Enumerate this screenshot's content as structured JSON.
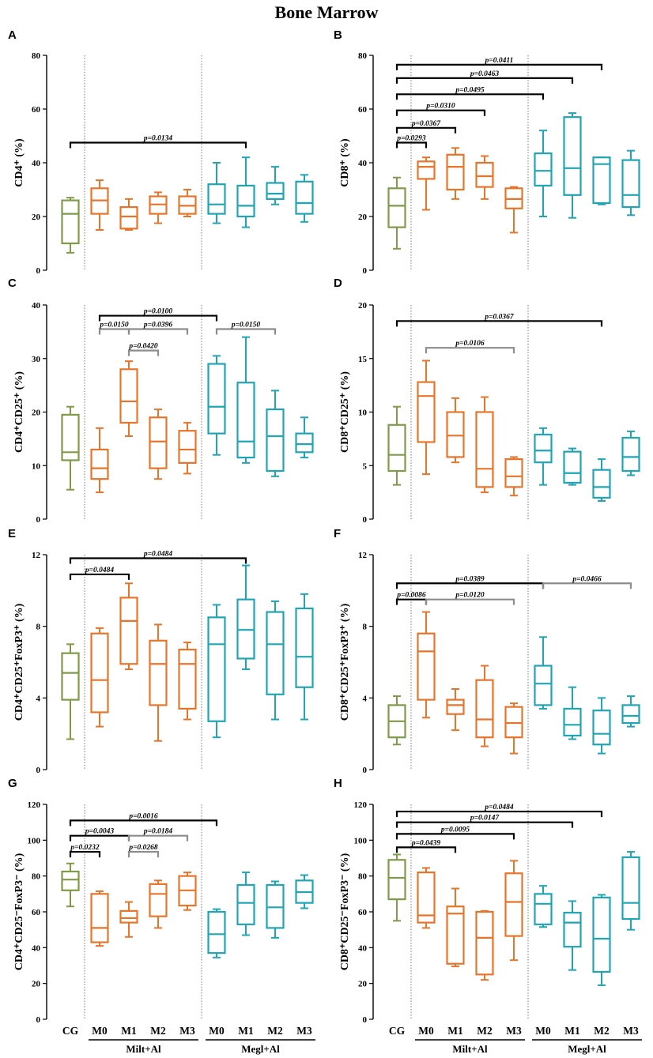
{
  "figure_title": "Bone Marrow",
  "categories": [
    "CG",
    "M0",
    "M1",
    "M2",
    "M3",
    "M0",
    "M1",
    "M2",
    "M3"
  ],
  "groups": [
    "Milt+Al",
    "Megl+Al"
  ],
  "colors": {
    "CG": "#7f9a48",
    "Milt+Al": "#e8742a",
    "Megl+Al": "#1fa5b4",
    "black": "#000000",
    "gray": "#8c8c8c"
  },
  "chart_data": [
    {
      "panel": "A",
      "type": "box",
      "ylabel": "CD4⁺ (%)",
      "ylim": [
        0,
        80
      ],
      "yticks": [
        0,
        20,
        40,
        60,
        80
      ],
      "series": [
        {
          "name": "CG",
          "values": [
            6.5,
            10,
            21,
            26,
            27
          ]
        },
        {
          "name": "M0",
          "values": [
            15,
            21,
            26,
            30.5,
            33.5
          ]
        },
        {
          "name": "M1",
          "values": [
            15,
            15.5,
            20,
            23.5,
            26.5
          ]
        },
        {
          "name": "M2",
          "values": [
            17.5,
            21,
            24.5,
            27.5,
            29
          ]
        },
        {
          "name": "M3",
          "values": [
            20,
            21,
            24,
            27.5,
            30
          ]
        },
        {
          "name": "M0",
          "values": [
            17.5,
            21,
            24.5,
            32,
            40
          ]
        },
        {
          "name": "M1",
          "values": [
            16,
            20,
            24,
            31.5,
            42
          ]
        },
        {
          "name": "M2",
          "values": [
            24.5,
            26.5,
            28.5,
            32.5,
            38.5
          ]
        },
        {
          "name": "M3",
          "values": [
            18,
            21,
            25,
            33,
            35.5
          ]
        }
      ],
      "annotations": [
        {
          "from": 0,
          "to": 6,
          "level": 47.5,
          "text": "p=0.0134",
          "color": "black"
        }
      ]
    },
    {
      "panel": "B",
      "type": "box",
      "ylabel": "CD8⁺ (%)",
      "ylim": [
        0,
        80
      ],
      "yticks": [
        0,
        20,
        40,
        60,
        80
      ],
      "series": [
        {
          "name": "CG",
          "values": [
            8,
            16,
            24,
            30.5,
            34.5
          ]
        },
        {
          "name": "M0",
          "values": [
            22.5,
            34,
            38.5,
            40.5,
            42
          ]
        },
        {
          "name": "M1",
          "values": [
            26.5,
            30,
            38.5,
            43,
            45.5
          ]
        },
        {
          "name": "M2",
          "values": [
            26.5,
            31,
            35,
            40,
            42.5
          ]
        },
        {
          "name": "M3",
          "values": [
            14,
            23,
            26.5,
            30.5,
            31
          ]
        },
        {
          "name": "M0",
          "values": [
            20,
            31.5,
            37,
            43.5,
            52
          ]
        },
        {
          "name": "M1",
          "values": [
            19.5,
            28,
            38,
            57,
            58.5
          ]
        },
        {
          "name": "M2",
          "values": [
            24.5,
            25,
            39.5,
            42,
            42
          ]
        },
        {
          "name": "M3",
          "values": [
            20.5,
            23.5,
            28,
            41,
            44.5
          ]
        }
      ],
      "annotations": [
        {
          "from": 0,
          "to": 7,
          "level": 76.5,
          "text": "p=0.0411",
          "color": "black"
        },
        {
          "from": 0,
          "to": 6,
          "level": 71.5,
          "text": "p=0.0463",
          "color": "black"
        },
        {
          "from": 0,
          "to": 5,
          "level": 65.5,
          "text": "p=0.0495",
          "color": "black"
        },
        {
          "from": 0,
          "to": 3,
          "level": 59.5,
          "text": "p=0.0310",
          "color": "black"
        },
        {
          "from": 0,
          "to": 2,
          "level": 53,
          "text": "p=0.0367",
          "color": "black"
        },
        {
          "from": 0,
          "to": 1,
          "level": 47.5,
          "text": "p=0.0293",
          "color": "black"
        }
      ]
    },
    {
      "panel": "C",
      "type": "box",
      "ylabel": "CD4⁺CD25⁺ (%)",
      "ylim": [
        0,
        40
      ],
      "yticks": [
        0,
        10,
        20,
        30,
        40
      ],
      "series": [
        {
          "name": "CG",
          "values": [
            5.5,
            11,
            12.5,
            19.5,
            21
          ]
        },
        {
          "name": "M0",
          "values": [
            5,
            7.5,
            9.5,
            13,
            17
          ]
        },
        {
          "name": "M1",
          "values": [
            15.5,
            18,
            22,
            28,
            29.5
          ]
        },
        {
          "name": "M2",
          "values": [
            7.5,
            9.5,
            14.5,
            19,
            20.5
          ]
        },
        {
          "name": "M3",
          "values": [
            8.5,
            10.5,
            13,
            16.5,
            18
          ]
        },
        {
          "name": "M0",
          "values": [
            12,
            16,
            21,
            29,
            30.5
          ]
        },
        {
          "name": "M1",
          "values": [
            10.5,
            11.5,
            14.5,
            25.5,
            34
          ]
        },
        {
          "name": "M2",
          "values": [
            8,
            9,
            15.5,
            20.5,
            24
          ]
        },
        {
          "name": "M3",
          "values": [
            11.5,
            12.5,
            14,
            16,
            19
          ]
        }
      ],
      "annotations": [
        {
          "from": 1,
          "to": 5,
          "level": 38,
          "text": "p=0.0100",
          "color": "black"
        },
        {
          "from": 5,
          "to": 7,
          "level": 35.5,
          "text": "p=0.0150",
          "color": "gray"
        },
        {
          "from": 1,
          "to": 2,
          "level": 35.5,
          "text": "p=0.0150",
          "color": "gray"
        },
        {
          "from": 2,
          "to": 4,
          "level": 35.5,
          "text": "p=0.0396",
          "color": "gray"
        },
        {
          "from": 2,
          "to": 3,
          "level": 31.5,
          "text": "p=0.0420",
          "color": "gray"
        }
      ]
    },
    {
      "panel": "D",
      "type": "box",
      "ylabel": "CD8⁺CD25⁺ (%)",
      "ylim": [
        0,
        20
      ],
      "yticks": [
        0,
        5,
        10,
        15,
        20
      ],
      "series": [
        {
          "name": "CG",
          "values": [
            3.2,
            4.5,
            6,
            8.8,
            10.5
          ]
        },
        {
          "name": "M0",
          "values": [
            4.2,
            7.2,
            11.5,
            12.8,
            14.8
          ]
        },
        {
          "name": "M1",
          "values": [
            5.3,
            5.8,
            7.8,
            10,
            11.3
          ]
        },
        {
          "name": "M2",
          "values": [
            2.5,
            3,
            4.7,
            10,
            11.4
          ]
        },
        {
          "name": "M3",
          "values": [
            2.2,
            3,
            4,
            5.6,
            5.8
          ]
        },
        {
          "name": "M0",
          "values": [
            3.2,
            5.3,
            6.4,
            7.9,
            8.5
          ]
        },
        {
          "name": "M1",
          "values": [
            3.2,
            3.4,
            4.3,
            6.3,
            6.6
          ]
        },
        {
          "name": "M2",
          "values": [
            1.7,
            2,
            3,
            4.6,
            5.6
          ]
        },
        {
          "name": "M3",
          "values": [
            4.1,
            4.5,
            5.8,
            7.6,
            8.2
          ]
        }
      ],
      "annotations": [
        {
          "from": 0,
          "to": 7,
          "level": 18.5,
          "text": "p=0.0367",
          "color": "black"
        },
        {
          "from": 1,
          "to": 4,
          "level": 16,
          "text": "p=0.0106",
          "color": "gray"
        }
      ]
    },
    {
      "panel": "E",
      "type": "box",
      "ylabel": "CD4⁺CD25⁺FoxP3⁺ (%)",
      "ylim": [
        0,
        12
      ],
      "yticks": [
        0,
        4,
        8,
        12
      ],
      "series": [
        {
          "name": "CG",
          "values": [
            1.7,
            3.9,
            5.4,
            6.5,
            7
          ]
        },
        {
          "name": "M0",
          "values": [
            2.4,
            3.2,
            5,
            7.6,
            7.9
          ]
        },
        {
          "name": "M1",
          "values": [
            5.6,
            5.9,
            8.3,
            9.6,
            10.4
          ]
        },
        {
          "name": "M2",
          "values": [
            1.6,
            3.6,
            5.9,
            7.2,
            8.1
          ]
        },
        {
          "name": "M3",
          "values": [
            2.8,
            3.4,
            5.9,
            6.7,
            7.1
          ]
        },
        {
          "name": "M0",
          "values": [
            1.8,
            2.7,
            7,
            8.5,
            9.2
          ]
        },
        {
          "name": "M1",
          "values": [
            5.6,
            6.2,
            7.8,
            9.5,
            11.4
          ]
        },
        {
          "name": "M2",
          "values": [
            2.8,
            4.2,
            7,
            8.8,
            9.4
          ]
        },
        {
          "name": "M3",
          "values": [
            2.8,
            4.6,
            6.3,
            9,
            9.8
          ]
        }
      ],
      "annotations": [
        {
          "from": 0,
          "to": 6,
          "level": 11.8,
          "text": "p=0.0484",
          "color": "black"
        },
        {
          "from": 0,
          "to": 2,
          "level": 10.9,
          "text": "p=0.0484",
          "color": "black"
        }
      ]
    },
    {
      "panel": "F",
      "type": "box",
      "ylabel": "CD8⁺CD25⁺FoxP3⁺ (%)",
      "ylim": [
        0,
        12
      ],
      "yticks": [
        0,
        4,
        8,
        12
      ],
      "series": [
        {
          "name": "CG",
          "values": [
            1.4,
            1.8,
            2.7,
            3.6,
            4.1
          ]
        },
        {
          "name": "M0",
          "values": [
            2.9,
            3.9,
            6.6,
            7.6,
            8.8
          ]
        },
        {
          "name": "M1",
          "values": [
            2.2,
            3.1,
            3.6,
            3.9,
            4.5
          ]
        },
        {
          "name": "M2",
          "values": [
            1.3,
            1.8,
            2.8,
            5,
            5.8
          ]
        },
        {
          "name": "M3",
          "values": [
            0.9,
            1.8,
            2.6,
            3.5,
            3.7
          ]
        },
        {
          "name": "M0",
          "values": [
            3.4,
            3.6,
            4.8,
            5.8,
            7.4
          ]
        },
        {
          "name": "M1",
          "values": [
            1.7,
            1.9,
            2.5,
            3.4,
            4.6
          ]
        },
        {
          "name": "M2",
          "values": [
            0.9,
            1.4,
            2,
            3.3,
            4
          ]
        },
        {
          "name": "M3",
          "values": [
            2.4,
            2.6,
            3,
            3.6,
            4.1
          ]
        }
      ],
      "annotations": [
        {
          "from": 0,
          "to": 5,
          "level": 10.4,
          "text": "p=0.0389",
          "color": "black"
        },
        {
          "from": 5,
          "to": 8,
          "level": 10.4,
          "text": "p=0.0466",
          "color": "gray"
        },
        {
          "from": 0,
          "to": 1,
          "level": 9.5,
          "text": "p=0.0086",
          "color": "black"
        },
        {
          "from": 1,
          "to": 4,
          "level": 9.5,
          "text": "p=0.0120",
          "color": "gray"
        }
      ]
    },
    {
      "panel": "G",
      "type": "box",
      "ylabel": "CD4⁺CD25⁻FoxP3⁻ (%)",
      "ylim": [
        0,
        120
      ],
      "yticks": [
        0,
        20,
        40,
        60,
        80,
        100,
        120
      ],
      "series": [
        {
          "name": "CG",
          "values": [
            63,
            72,
            78,
            82.5,
            87
          ]
        },
        {
          "name": "M0",
          "values": [
            41,
            43,
            51,
            70,
            71.5
          ]
        },
        {
          "name": "M1",
          "values": [
            46,
            54,
            56.5,
            60.5,
            65.5
          ]
        },
        {
          "name": "M2",
          "values": [
            51,
            57.5,
            70,
            75.5,
            77.5
          ]
        },
        {
          "name": "M3",
          "values": [
            61,
            63.5,
            72,
            80,
            82
          ]
        },
        {
          "name": "M0",
          "values": [
            34.5,
            37,
            47.5,
            60,
            61.5
          ]
        },
        {
          "name": "M1",
          "values": [
            47,
            53,
            65,
            75,
            82
          ]
        },
        {
          "name": "M2",
          "values": [
            45.5,
            51,
            62.5,
            75,
            77
          ]
        },
        {
          "name": "M3",
          "values": [
            62,
            65,
            71,
            77.5,
            80.5
          ]
        }
      ],
      "annotations": [
        {
          "from": 0,
          "to": 5,
          "level": 111,
          "text": "p=0.0016",
          "color": "black"
        },
        {
          "from": 0,
          "to": 2,
          "level": 102.5,
          "text": "p=0.0043",
          "color": "black"
        },
        {
          "from": 2,
          "to": 4,
          "level": 102.5,
          "text": "p=0.0184",
          "color": "gray"
        },
        {
          "from": 0,
          "to": 1,
          "level": 93.5,
          "text": "p=0.0232",
          "color": "black"
        },
        {
          "from": 2,
          "to": 3,
          "level": 93.5,
          "text": "p=0.0268",
          "color": "gray"
        }
      ]
    },
    {
      "panel": "H",
      "type": "box",
      "ylabel": "CD8⁺CD25⁻FoxP3⁻ (%)",
      "ylim": [
        0,
        120
      ],
      "yticks": [
        0,
        20,
        40,
        60,
        80,
        100,
        120
      ],
      "series": [
        {
          "name": "CG",
          "values": [
            55,
            67,
            79,
            89,
            92
          ]
        },
        {
          "name": "M0",
          "values": [
            51,
            54,
            58,
            82,
            84.5
          ]
        },
        {
          "name": "M1",
          "values": [
            29.5,
            31,
            59,
            63,
            73
          ]
        },
        {
          "name": "M2",
          "values": [
            22,
            25,
            45.5,
            60,
            60.5
          ]
        },
        {
          "name": "M3",
          "values": [
            33,
            46.5,
            65.5,
            81.5,
            88.5
          ]
        },
        {
          "name": "M0",
          "values": [
            51.5,
            53,
            64.5,
            70,
            74.5
          ]
        },
        {
          "name": "M1",
          "values": [
            27.5,
            40.5,
            54,
            59.5,
            66
          ]
        },
        {
          "name": "M2",
          "values": [
            19,
            26.5,
            45,
            68,
            69.5
          ]
        },
        {
          "name": "M3",
          "values": [
            50,
            56,
            65,
            90.5,
            93.5
          ]
        }
      ],
      "annotations": [
        {
          "from": 0,
          "to": 7,
          "level": 116,
          "text": "p=0.0484",
          "color": "black"
        },
        {
          "from": 0,
          "to": 6,
          "level": 110,
          "text": "p=0.0147",
          "color": "black"
        },
        {
          "from": 0,
          "to": 4,
          "level": 103.5,
          "text": "p=0.0095",
          "color": "black"
        },
        {
          "from": 0,
          "to": 2,
          "level": 96,
          "text": "p=0.0439",
          "color": "black"
        }
      ]
    }
  ]
}
